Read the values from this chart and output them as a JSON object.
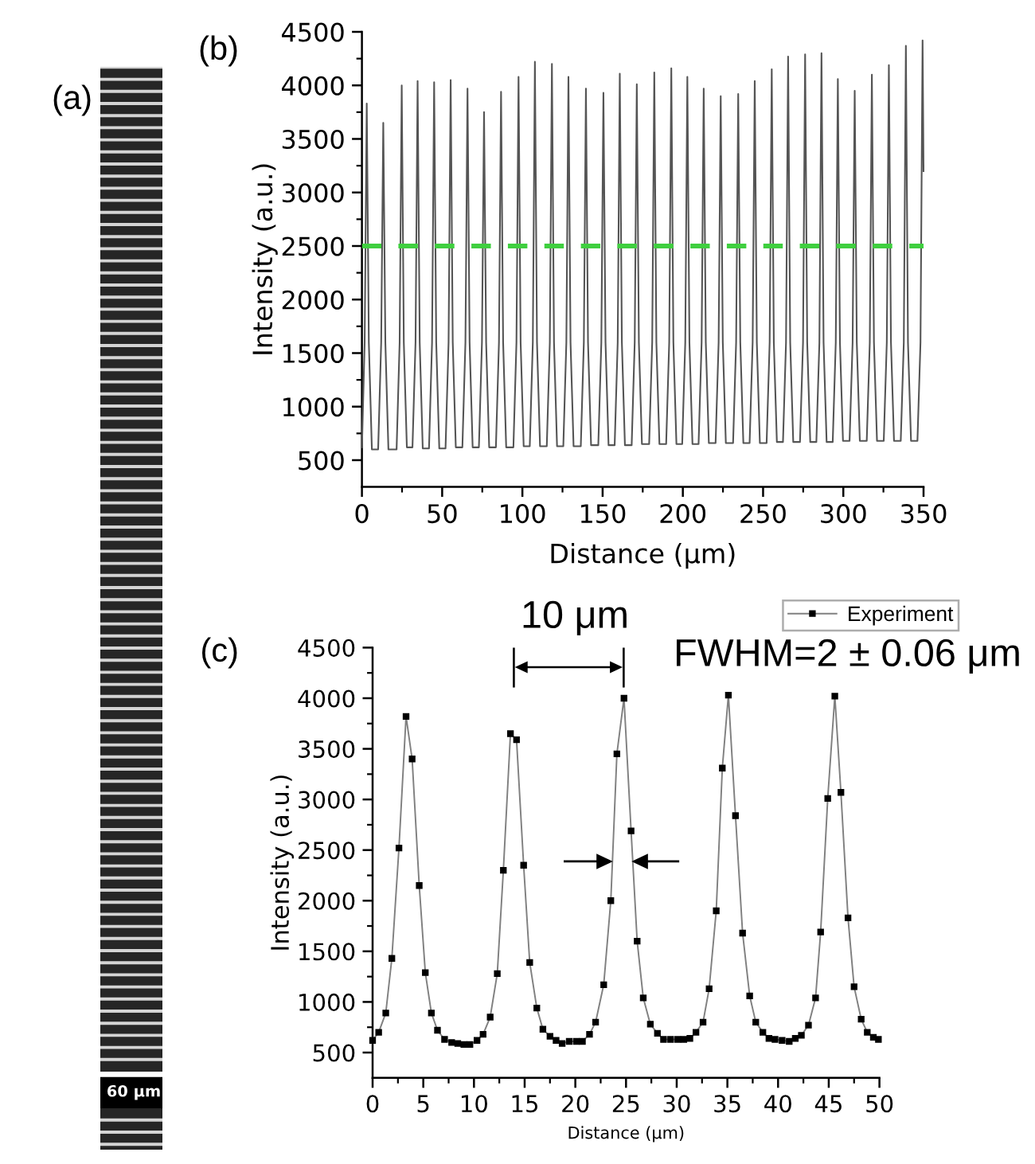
{
  "chart_data": [
    {
      "type": "other",
      "title": "(a)",
      "annotations": [
        "60 μm"
      ]
    },
    {
      "type": "line",
      "title": "(b)",
      "xlabel": "Distance (μm)",
      "ylabel": "Intensity (a.u.)",
      "xlim": [
        0,
        350
      ],
      "ylim": [
        250,
        4500
      ],
      "xticks": [
        0,
        {
          "value": 25,
          "label": null
        },
        50,
        {
          "value": 75,
          "label": null
        },
        100,
        {
          "value": 125,
          "label": null
        },
        150,
        {
          "value": 175,
          "label": null
        },
        200,
        {
          "value": 225,
          "label": null
        },
        250,
        {
          "value": 275,
          "label": null
        },
        300,
        {
          "value": 325,
          "label": null
        },
        350
      ],
      "yticks": [
        500,
        {
          "value": 750,
          "label": null
        },
        1000,
        {
          "value": 1250,
          "label": null
        },
        1500,
        {
          "value": 1750,
          "label": null
        },
        2000,
        {
          "value": 2250,
          "label": null
        },
        2500,
        {
          "value": 2750,
          "label": null
        },
        3000,
        {
          "value": 3250,
          "label": null
        },
        3500,
        {
          "value": 3750,
          "label": null
        },
        4000,
        {
          "value": 4250,
          "label": null
        },
        4500
      ],
      "ref_lines": [
        {
          "axis": "y",
          "value": 2500,
          "color": "#3fcf3f",
          "line_style": "dashed"
        }
      ],
      "series": [
        {
          "color": "#555555",
          "x": [
            0,
            1.7,
            3.0,
            4.3,
            6.2,
            10.1,
            12.0,
            13.3,
            14.6,
            16.5,
            21.6,
            23.5,
            24.8,
            26.1,
            28.0,
            31.5,
            33.4,
            34.7,
            36.0,
            37.9,
            41.8,
            43.7,
            45.0,
            46.3,
            48.2,
            52.1,
            54.0,
            55.3,
            56.6,
            58.5,
            62.6,
            64.5,
            65.8,
            67.1,
            69.0,
            72.9,
            74.8,
            76.1,
            77.4,
            79.3,
            83.5,
            85.4,
            86.7,
            88.0,
            89.9,
            94.4,
            96.3,
            97.6,
            98.9,
            100.8,
            104.6,
            106.5,
            107.8,
            109.1,
            111.0,
            115.2,
            117.1,
            118.4,
            119.7,
            121.6,
            125.5,
            127.4,
            128.7,
            130.0,
            131.9,
            136.4,
            138.3,
            139.6,
            140.9,
            142.8,
            147.3,
            149.2,
            150.5,
            151.8,
            153.7,
            157.5,
            159.4,
            160.7,
            162.0,
            163.9,
            168.1,
            170.0,
            171.3,
            172.6,
            174.5,
            179.0,
            180.9,
            182.2,
            183.5,
            185.4,
            189.6,
            191.5,
            192.8,
            194.1,
            196.0,
            199.6,
            201.5,
            202.8,
            204.1,
            206.0,
            209.8,
            211.7,
            213.0,
            214.3,
            216.2,
            220.4,
            222.3,
            223.6,
            224.9,
            226.8,
            231.3,
            233.2,
            234.5,
            235.8,
            237.7,
            241.6,
            243.5,
            244.8,
            246.1,
            248.0,
            252.2,
            254.1,
            255.4,
            256.7,
            258.6,
            262.4,
            264.3,
            265.6,
            266.9,
            268.8,
            273.0,
            274.9,
            276.2,
            277.5,
            279.4,
            283.2,
            285.1,
            286.4,
            287.7,
            289.6,
            293.4,
            295.3,
            296.6,
            297.9,
            299.8,
            303.9,
            305.8,
            307.1,
            308.4,
            310.3,
            314.6,
            316.5,
            317.8,
            319.1,
            321.0,
            325.2,
            327.1,
            328.4,
            329.7,
            331.6,
            335.8,
            337.7,
            339.0,
            340.3,
            342.2,
            346.2,
            348.1,
            349.4,
            350.0
          ],
          "values": [
            620,
            1600,
            3830,
            1600,
            600,
            600,
            1600,
            3650,
            1600,
            600,
            600,
            1600,
            4000,
            1600,
            620,
            620,
            1600,
            4040,
            1600,
            610,
            610,
            1600,
            4030,
            1600,
            610,
            610,
            1600,
            4050,
            1600,
            620,
            620,
            1600,
            3970,
            1600,
            620,
            620,
            1600,
            3750,
            1600,
            620,
            620,
            1600,
            3940,
            1600,
            620,
            620,
            1600,
            4080,
            1600,
            630,
            630,
            1600,
            4220,
            1600,
            630,
            630,
            1600,
            4200,
            1600,
            630,
            630,
            1600,
            4080,
            1600,
            630,
            630,
            1600,
            3970,
            1600,
            640,
            640,
            1600,
            3930,
            1600,
            640,
            640,
            1600,
            4110,
            1600,
            640,
            640,
            1600,
            4010,
            1600,
            650,
            650,
            1600,
            4120,
            1600,
            650,
            650,
            1600,
            4160,
            1600,
            650,
            650,
            1600,
            4080,
            1600,
            650,
            650,
            1600,
            3970,
            1600,
            660,
            660,
            1600,
            3900,
            1600,
            660,
            660,
            1600,
            3920,
            1600,
            660,
            660,
            1600,
            4040,
            1600,
            660,
            660,
            1600,
            4150,
            1600,
            670,
            670,
            1600,
            4270,
            1600,
            670,
            670,
            1600,
            4290,
            1600,
            670,
            670,
            1600,
            4300,
            1600,
            670,
            670,
            1600,
            4060,
            1600,
            680,
            680,
            1600,
            3950,
            1600,
            680,
            680,
            1600,
            4100,
            1600,
            680,
            680,
            1600,
            4190,
            1600,
            680,
            680,
            1600,
            4370,
            1600,
            680,
            680,
            1600,
            4420,
            3200
          ]
        }
      ]
    },
    {
      "type": "line",
      "title": "(c)",
      "xlabel": "Distance (μm)",
      "ylabel": "Intensity (a.u.)",
      "xlim": [
        0,
        50
      ],
      "ylim": [
        250,
        4500
      ],
      "xticks": [
        0,
        {
          "value": 2.5,
          "label": null
        },
        5,
        {
          "value": 7.5,
          "label": null
        },
        10,
        {
          "value": 12.5,
          "label": null
        },
        15,
        {
          "value": 17.5,
          "label": null
        },
        20,
        {
          "value": 22.5,
          "label": null
        },
        25,
        {
          "value": 27.5,
          "label": null
        },
        30,
        {
          "value": 32.5,
          "label": null
        },
        35,
        {
          "value": 37.5,
          "label": null
        },
        40,
        {
          "value": 42.5,
          "label": null
        },
        45,
        {
          "value": 47.5,
          "label": null
        },
        50
      ],
      "yticks": [
        500,
        {
          "value": 750,
          "label": null
        },
        1000,
        {
          "value": 1250,
          "label": null
        },
        1500,
        {
          "value": 1750,
          "label": null
        },
        2000,
        {
          "value": 2250,
          "label": null
        },
        2500,
        {
          "value": 2750,
          "label": null
        },
        3000,
        {
          "value": 3250,
          "label": null
        },
        3500,
        {
          "value": 3750,
          "label": null
        },
        4000,
        {
          "value": 4250,
          "label": null
        },
        4500
      ],
      "legend": "top right",
      "marker": "square",
      "annotations": [
        "10 μm",
        "FWHM=2 ± 0.06 μm"
      ],
      "series": [
        {
          "name": "Experiment",
          "color": "#000000",
          "x": [
            0,
            0.6,
            1.3,
            1.9,
            2.6,
            3.3,
            3.9,
            4.6,
            5.2,
            5.8,
            6.4,
            7.1,
            7.8,
            8.4,
            9.0,
            9.6,
            10.3,
            10.9,
            11.6,
            12.3,
            12.9,
            13.6,
            14.2,
            14.9,
            15.5,
            16.2,
            16.8,
            17.5,
            18.1,
            18.7,
            19.4,
            20.1,
            20.7,
            21.4,
            22.0,
            22.8,
            23.5,
            24.1,
            24.8,
            25.5,
            26.1,
            26.7,
            27.4,
            28.1,
            28.7,
            29.4,
            30.1,
            30.7,
            31.3,
            31.9,
            32.6,
            33.2,
            33.9,
            34.5,
            35.1,
            35.8,
            36.5,
            37.2,
            37.8,
            38.5,
            39.1,
            39.7,
            40.4,
            41.1,
            41.7,
            42.3,
            43.0,
            43.7,
            44.2,
            44.9,
            45.6,
            46.2,
            46.9,
            47.5,
            48.2,
            48.8,
            49.4,
            49.9
          ],
          "values": [
            620,
            700,
            890,
            1430,
            2520,
            3820,
            3400,
            2150,
            1290,
            890,
            720,
            630,
            600,
            590,
            580,
            580,
            620,
            680,
            850,
            1280,
            2300,
            3650,
            3590,
            2350,
            1390,
            940,
            730,
            660,
            620,
            590,
            610,
            610,
            610,
            680,
            800,
            1170,
            2000,
            3450,
            4000,
            2690,
            1600,
            1040,
            780,
            690,
            630,
            630,
            630,
            630,
            640,
            700,
            800,
            1130,
            1900,
            3310,
            4030,
            2840,
            1680,
            1060,
            800,
            700,
            640,
            630,
            620,
            610,
            640,
            670,
            770,
            1040,
            1690,
            3010,
            4020,
            3070,
            1830,
            1150,
            830,
            700,
            650,
            630
          ]
        }
      ]
    }
  ]
}
